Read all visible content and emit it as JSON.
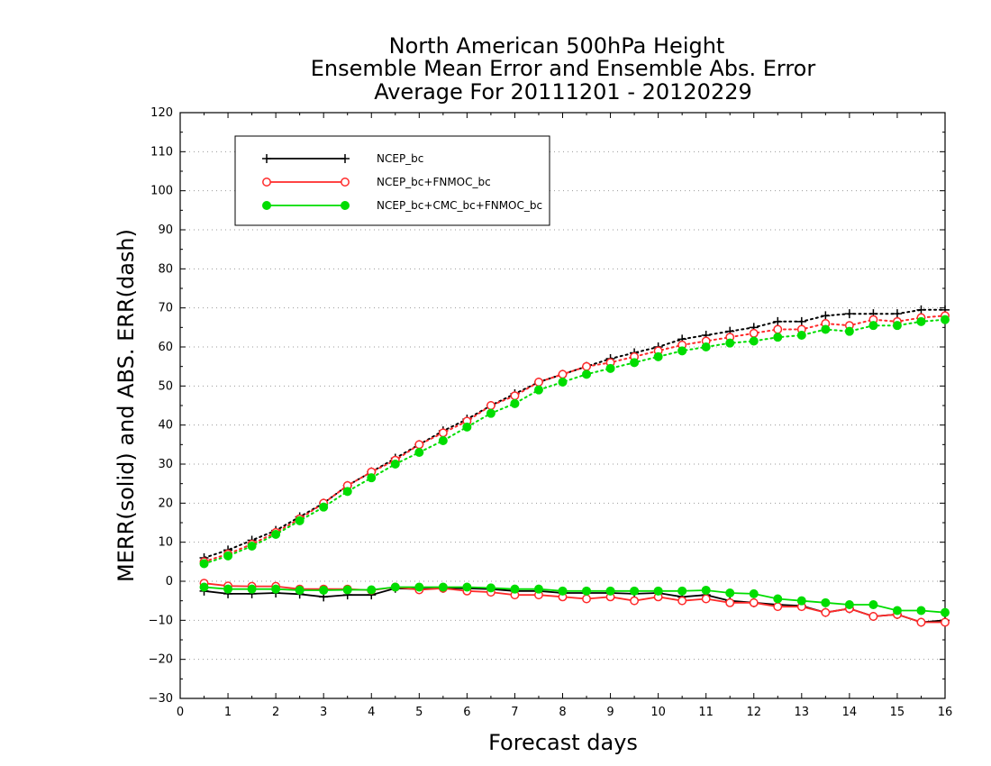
{
  "chart_data": {
    "type": "line",
    "title": [
      "North American 500hPa Height",
      "Ensemble Mean Error and Ensemble Abs. Error",
      "Average For 20111201 - 20120229"
    ],
    "xlabel": "Forecast days",
    "ylabel": "MERR(solid) and ABS. ERR(dash)",
    "xlim": [
      0,
      16
    ],
    "ylim": [
      -30,
      120
    ],
    "xticks": [
      "0",
      "1",
      "2",
      "3",
      "4",
      "5",
      "6",
      "7",
      "8",
      "9",
      "10",
      "11",
      "12",
      "13",
      "14",
      "15",
      "16"
    ],
    "yticks": [
      "−30",
      "−20",
      "−10",
      "0",
      "10",
      "20",
      "30",
      "40",
      "50",
      "60",
      "70",
      "80",
      "90",
      "100",
      "110",
      "120"
    ],
    "grid": "horizontal dotted",
    "legend_position": "top-left",
    "x": [
      0.5,
      1,
      1.5,
      2,
      2.5,
      3,
      3.5,
      4,
      4.5,
      5,
      5.5,
      6,
      6.5,
      7,
      7.5,
      8,
      8.5,
      9,
      9.5,
      10,
      10.5,
      11,
      11.5,
      12,
      12.5,
      13,
      13.5,
      14,
      14.5,
      15,
      15.5,
      16
    ],
    "series": [
      {
        "name": "NCEP_bc",
        "color": "#000000",
        "marker": "plus",
        "merr": [
          -2.5,
          -3.2,
          -3.2,
          -3.0,
          -3.3,
          -4.0,
          -3.5,
          -3.5,
          -1.8,
          -2.0,
          -1.8,
          -1.8,
          -2.0,
          -2.5,
          -2.5,
          -3.0,
          -3.0,
          -3.0,
          -3.2,
          -3.0,
          -4.0,
          -3.5,
          -5.0,
          -5.5,
          -6.0,
          -6.3,
          -8.0,
          -7.0,
          -9.0,
          -8.5,
          -10.5,
          -10.0
        ],
        "abs_err": [
          6.0,
          8.0,
          10.5,
          13.0,
          16.5,
          20.0,
          24.5,
          28.0,
          31.5,
          35.0,
          38.5,
          41.5,
          45.0,
          48.0,
          51.0,
          53.0,
          55.0,
          57.0,
          58.5,
          60.0,
          62.0,
          63.0,
          64.0,
          65.0,
          66.5,
          66.5,
          68.0,
          68.5,
          68.5,
          68.5,
          69.5,
          69.5
        ]
      },
      {
        "name": "NCEP_bc+FNMOC_bc",
        "color": "#ff2a2a",
        "marker": "open-circle",
        "merr": [
          -0.5,
          -1.2,
          -1.3,
          -1.3,
          -2.0,
          -2.0,
          -2.0,
          -2.3,
          -1.5,
          -2.2,
          -1.8,
          -2.5,
          -2.8,
          -3.5,
          -3.5,
          -4.0,
          -4.5,
          -4.0,
          -5.0,
          -4.0,
          -5.0,
          -4.5,
          -5.5,
          -5.5,
          -6.5,
          -6.5,
          -8.0,
          -7.0,
          -9.0,
          -8.5,
          -10.5,
          -10.5
        ],
        "abs_err": [
          5.0,
          7.0,
          9.5,
          12.5,
          16.0,
          20.0,
          24.5,
          28.0,
          31.0,
          35.0,
          38.0,
          41.0,
          45.0,
          47.5,
          51.0,
          53.0,
          55.0,
          56.0,
          57.5,
          59.0,
          60.5,
          61.5,
          62.5,
          63.5,
          64.5,
          64.5,
          66.0,
          65.5,
          67.0,
          66.5,
          67.5,
          68.0
        ]
      },
      {
        "name": "NCEP_bc+CMC_bc+FNMOC_bc",
        "color": "#00dd00",
        "marker": "filled-circle",
        "merr": [
          -1.5,
          -2.0,
          -2.0,
          -2.0,
          -2.3,
          -2.3,
          -2.2,
          -2.2,
          -1.5,
          -1.5,
          -1.5,
          -1.5,
          -1.7,
          -2.0,
          -2.0,
          -2.5,
          -2.5,
          -2.5,
          -2.5,
          -2.5,
          -2.5,
          -2.3,
          -3.0,
          -3.2,
          -4.5,
          -5.0,
          -5.5,
          -6.0,
          -6.0,
          -7.5,
          -7.5,
          -8.0
        ],
        "abs_err": [
          4.5,
          6.5,
          9.0,
          12.0,
          15.5,
          19.0,
          23.0,
          26.5,
          30.0,
          33.0,
          36.0,
          39.5,
          43.0,
          45.5,
          49.0,
          51.0,
          53.0,
          54.5,
          56.0,
          57.5,
          59.0,
          60.0,
          61.0,
          61.5,
          62.5,
          63.0,
          64.5,
          64.0,
          65.5,
          65.5,
          66.5,
          67.0
        ]
      }
    ]
  }
}
